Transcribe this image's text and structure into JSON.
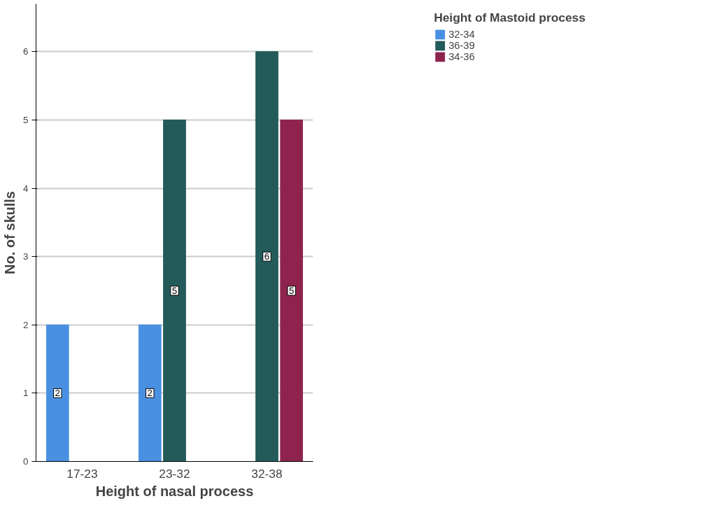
{
  "chart_data": {
    "type": "bar",
    "xlabel": "Height of nasal process",
    "ylabel": "No. of skulls",
    "legend_title": "Height of Mastoid process",
    "categories": [
      "17-23",
      "23-32",
      "32-38"
    ],
    "series": [
      {
        "name": "32-34",
        "color": "#4a90e2",
        "values": [
          2,
          2,
          null
        ]
      },
      {
        "name": "36-39",
        "color": "#235a5a",
        "values": [
          null,
          5,
          6
        ]
      },
      {
        "name": "34-36",
        "color": "#8e244d",
        "values": [
          null,
          null,
          5
        ]
      }
    ],
    "ylim": [
      0,
      6.7
    ],
    "yticks": [
      0,
      1,
      2,
      3,
      4,
      5,
      6
    ],
    "grid": "y",
    "legend": "top right",
    "data_labels": true
  }
}
